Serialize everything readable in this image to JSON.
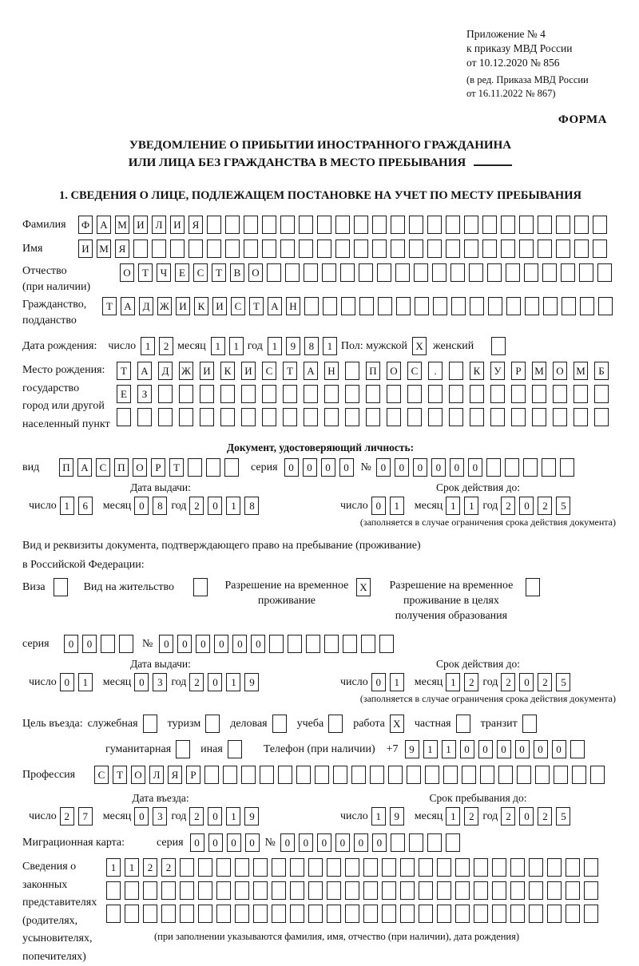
{
  "header": {
    "appendix_lines": [
      "Приложение № 4",
      "к приказу МВД России",
      "от 10.12.2020 № 856"
    ],
    "amendment_lines": [
      "(в ред. Приказа МВД России",
      "от 16.11.2022 № 867)"
    ],
    "form_label": "ФОРМА"
  },
  "title": {
    "line1": "УВЕДОМЛЕНИЕ О ПРИБЫТИИ ИНОСТРАННОГО ГРАЖДАНИНА",
    "line2": "ИЛИ ЛИЦА БЕЗ ГРАЖДАНСТВА В МЕСТО ПРЕБЫВАНИЯ"
  },
  "section1_heading": "1. СВЕДЕНИЯ О ЛИЦЕ, ПОДЛЕЖАЩЕМ ПОСТАНОВКЕ НА УЧЕТ ПО МЕСТУ ПРЕБЫВАНИЯ",
  "date_labels": {
    "day": "число",
    "month": "месяц",
    "year": "год"
  },
  "person": {
    "surname": {
      "label": "Фамилия",
      "value": "ФАМИЛИЯ",
      "length": 29
    },
    "first_name": {
      "label": "Имя",
      "value": "ИМЯ",
      "length": 29
    },
    "patronymic": {
      "label": "Отчество",
      "label2": "(при наличии)",
      "value": "ОТЧЕСТВО",
      "length": 27
    },
    "citizenship": {
      "label": "Гражданство,",
      "label2": "подданство",
      "value": "ТАДЖИКИСТАН",
      "length": 28
    },
    "birth_date": {
      "label": "Дата рождения:",
      "day": "12",
      "month": "11",
      "year": "1981"
    },
    "sex": {
      "label_male": "Пол: мужской",
      "male_checked": true,
      "label_female": "женский",
      "female_checked": false
    },
    "birth_place": {
      "label": "Место рождения:",
      "sub_labels": [
        "государство",
        "город или другой",
        "населенный пункт"
      ],
      "rows": [
        {
          "value": "ТАДЖИКИСТАН ПОС. КУРМОМБ",
          "length": 24
        },
        {
          "value": "ЕЗ",
          "length": 24
        },
        {
          "value": "",
          "length": 24
        }
      ]
    }
  },
  "identity_doc": {
    "heading": "Документ, удостоверяющий личность:",
    "kind_label": "вид",
    "kind": {
      "value": "ПАСПОРТ",
      "length": 10
    },
    "series_label": "серия",
    "series": {
      "value": "0000",
      "length": 4
    },
    "number_label": "№",
    "number": {
      "value": "000000",
      "length": 11
    },
    "issue": {
      "heading": "Дата выдачи:",
      "day": "16",
      "month": "08",
      "year": "2018"
    },
    "valid": {
      "heading": "Срок действия до:",
      "day": "01",
      "month": "11",
      "year": "2025"
    },
    "note": "(заполняется в случае ограничения срока действия документа)"
  },
  "residence_doc": {
    "intro1": "Вид и реквизиты документа, подтверждающего право на пребывание (проживание)",
    "intro2": "в Российской Федерации:",
    "options": [
      {
        "label": "Виза",
        "checked": false
      },
      {
        "label": "Вид на жительство",
        "checked": false
      },
      {
        "label": "Разрешение на временное проживание",
        "checked": true
      },
      {
        "label": "Разрешение на временное проживание в целях получения образования",
        "checked": false
      }
    ],
    "series_label": "серия",
    "series": {
      "value": "00",
      "length": 4
    },
    "number_label": "№",
    "number": {
      "value": "000000",
      "length": 13
    },
    "issue": {
      "heading": "Дата выдачи:",
      "day": "01",
      "month": "03",
      "year": "2019"
    },
    "valid": {
      "heading": "Срок действия до:",
      "day": "01",
      "month": "12",
      "year": "2025"
    },
    "note": "(заполняется в случае ограничения срока действия документа)"
  },
  "visit": {
    "purpose_label": "Цель въезда:",
    "purposes": [
      {
        "label": "служебная",
        "checked": false
      },
      {
        "label": "туризм",
        "checked": false
      },
      {
        "label": "деловая",
        "checked": false
      },
      {
        "label": "учеба",
        "checked": false
      },
      {
        "label": "работа",
        "checked": true
      },
      {
        "label": "частная",
        "checked": false
      },
      {
        "label": "транзит",
        "checked": false
      },
      {
        "label": "гуманитарная",
        "checked": false
      },
      {
        "label": "иная",
        "checked": false
      }
    ],
    "phone_label": "Телефон (при наличии)",
    "phone_prefix": "+7",
    "phone": {
      "value": "911000000",
      "length": 10
    },
    "profession_label": "Профессия",
    "profession": {
      "value": "СТОЛЯР",
      "length": 28
    }
  },
  "stay": {
    "entry": {
      "heading": "Дата въезда:",
      "day": "27",
      "month": "03",
      "year": "2019"
    },
    "until": {
      "heading": "Срок пребывания до:",
      "day": "19",
      "month": "12",
      "year": "2025"
    },
    "migration_card_label": "Миграционная карта:",
    "series_label": "серия",
    "series": {
      "value": "0000",
      "length": 4
    },
    "number_label": "№",
    "number": {
      "value": "000000",
      "length": 10
    }
  },
  "representatives": {
    "label_lines": [
      "Сведения о",
      "законных",
      "представителях",
      "(родителях,",
      "усыновителях,",
      "попечителях)"
    ],
    "rows": [
      {
        "value": "1122",
        "length": 27
      },
      {
        "value": "",
        "length": 27
      },
      {
        "value": "",
        "length": 27
      }
    ],
    "caption": "(при заполнении указываются фамилия, имя, отчество (при наличии), дата рождения)"
  }
}
